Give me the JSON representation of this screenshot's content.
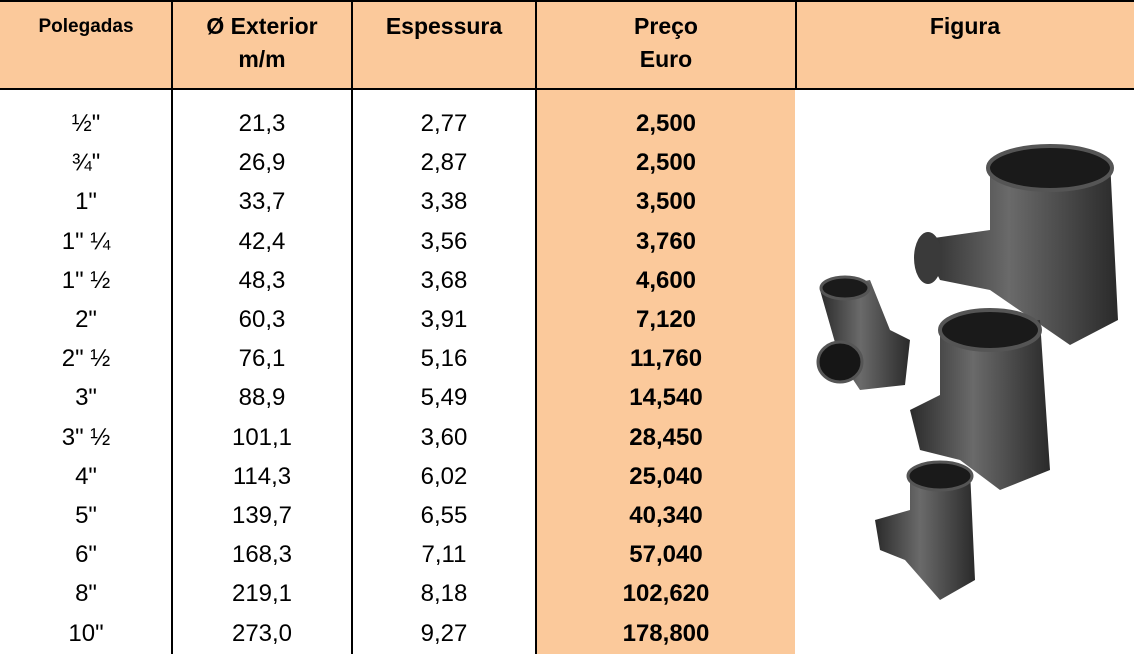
{
  "table": {
    "header": [
      [
        "Polegadas"
      ],
      [
        "Ø Exterior",
        "m/m"
      ],
      [
        "Espessura"
      ],
      [
        "Preço",
        "Euro"
      ],
      [
        "Figura"
      ]
    ],
    "rows": [
      [
        "½\"",
        "21,3",
        "2,77",
        "2,500"
      ],
      [
        "¾\"",
        "26,9",
        "2,87",
        "2,500"
      ],
      [
        "1\"",
        "33,7",
        "3,38",
        "3,500"
      ],
      [
        "1\" ¼",
        "42,4",
        "3,56",
        "3,760"
      ],
      [
        "1\" ½",
        "48,3",
        "3,68",
        "4,600"
      ],
      [
        "2\"",
        "60,3",
        "3,91",
        "7,120"
      ],
      [
        "2\" ½",
        "76,1",
        "5,16",
        "11,760"
      ],
      [
        "3\"",
        "88,9",
        "5,49",
        "14,540"
      ],
      [
        "3\" ½",
        "101,1",
        "3,60",
        "28,450"
      ],
      [
        "4\"",
        "114,3",
        "6,02",
        "25,040"
      ],
      [
        "5\"",
        "139,7",
        "6,55",
        "40,340"
      ],
      [
        "6\"",
        "168,3",
        "7,11",
        "57,040"
      ],
      [
        "8\"",
        "219,1",
        "8,18",
        "102,620"
      ],
      [
        "10\"",
        "273,0",
        "9,27",
        "178,800"
      ]
    ]
  }
}
